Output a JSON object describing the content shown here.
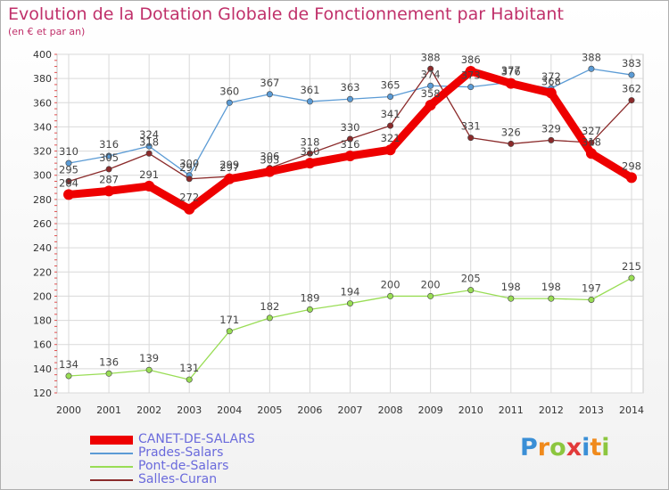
{
  "header": {
    "title": "Evolution de la Dotation Globale de Fonctionnement par Habitant",
    "subtitle": "(en € et par an)"
  },
  "logo": {
    "letters": [
      "P",
      "r",
      "o",
      "x",
      "i",
      "t",
      "i"
    ],
    "colors": [
      "#3a8fd6",
      "#f08a1c",
      "#8cc63f",
      "#e23a3a",
      "#3a8fd6",
      "#f08a1c",
      "#8cc63f"
    ]
  },
  "chart_data": {
    "type": "line",
    "title": "Evolution de la Dotation Globale de Fonctionnement par Habitant",
    "subtitle": "(en € et par an)",
    "xlabel": "",
    "ylabel": "",
    "x": [
      "2000",
      "2001",
      "2002",
      "2003",
      "2004",
      "2005",
      "2006",
      "2007",
      "2008",
      "2009",
      "2010",
      "2011",
      "2012",
      "2013",
      "2014"
    ],
    "ylim": [
      120,
      400
    ],
    "yticks": [
      "120",
      "140",
      "160",
      "180",
      "200",
      "220",
      "240",
      "260",
      "280",
      "300",
      "320",
      "340",
      "360",
      "380",
      "400"
    ],
    "grid": true,
    "legend_position": "bottom-left",
    "series": [
      {
        "name": "CANET-DE-SALARS",
        "color": "#ee0000",
        "width": "thick",
        "values": [
          284,
          287,
          291,
          272,
          297,
          303,
          310,
          316,
          321,
          358,
          386,
          376,
          368,
          318,
          298
        ],
        "labels": [
          "284",
          "287",
          "291",
          "272",
          "297",
          "303",
          "310",
          "316",
          "321",
          "358",
          "386",
          "376",
          "368",
          "318",
          "298"
        ]
      },
      {
        "name": "Prades-Salars",
        "color": "#5b9bd5",
        "width": "thin",
        "values": [
          310,
          316,
          324,
          300,
          360,
          367,
          361,
          363,
          365,
          374,
          373,
          377,
          372,
          388,
          383
        ],
        "labels": [
          "310",
          "316",
          "324",
          "300",
          "360",
          "367",
          "361",
          "363",
          "365",
          "374",
          "373",
          "377",
          "372",
          "388",
          "383"
        ]
      },
      {
        "name": "Pont-de-Salars",
        "color": "#99dd55",
        "width": "thin",
        "values": [
          134,
          136,
          139,
          131,
          171,
          182,
          189,
          194,
          200,
          200,
          205,
          198,
          198,
          197,
          215
        ],
        "labels": [
          "134",
          "136",
          "139",
          "131",
          "171",
          "182",
          "189",
          "194",
          "200",
          "200",
          "205",
          "198",
          "198",
          "197",
          "215"
        ]
      },
      {
        "name": "Salles-Curan",
        "color": "#8b2b2b",
        "width": "thin",
        "values": [
          295,
          305,
          318,
          297,
          299,
          306,
          318,
          330,
          341,
          388,
          331,
          326,
          329,
          327,
          362
        ],
        "labels": [
          "295",
          "305",
          "318",
          "297",
          "299",
          "306",
          "318",
          "330",
          "341",
          "388",
          "331",
          "326",
          "329",
          "327",
          "362"
        ]
      }
    ]
  }
}
